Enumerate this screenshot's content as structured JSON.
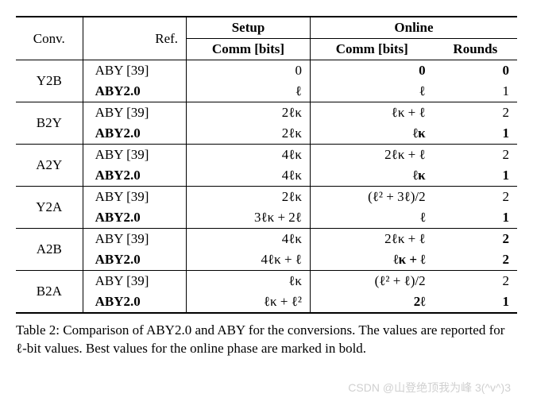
{
  "table": {
    "headers": {
      "conv": "Conv.",
      "ref": "Ref.",
      "setup": "Setup",
      "online": "Online",
      "comm_bits": "Comm [bits]",
      "rounds": "Rounds"
    },
    "groups": [
      {
        "conv": "Y2B",
        "rows": [
          {
            "ref": "ABY [39]",
            "ref_bold": false,
            "setup": "0",
            "online_comm": "0",
            "online_comm_bold": true,
            "rounds": "0",
            "rounds_bold": true
          },
          {
            "ref": "ABY2.0",
            "ref_bold": true,
            "setup": "ℓ",
            "online_comm": "ℓ",
            "online_comm_bold": false,
            "rounds": "1",
            "rounds_bold": false
          }
        ]
      },
      {
        "conv": "B2Y",
        "rows": [
          {
            "ref": "ABY [39]",
            "ref_bold": false,
            "setup": "2ℓκ",
            "online_comm": "ℓκ + ℓ",
            "online_comm_bold": false,
            "rounds": "2",
            "rounds_bold": false
          },
          {
            "ref": "ABY2.0",
            "ref_bold": true,
            "setup": "2ℓκ",
            "online_comm": "ℓκ",
            "online_comm_bold": true,
            "rounds": "1",
            "rounds_bold": true
          }
        ]
      },
      {
        "conv": "A2Y",
        "rows": [
          {
            "ref": "ABY [39]",
            "ref_bold": false,
            "setup": "4ℓκ",
            "online_comm": "2ℓκ + ℓ",
            "online_comm_bold": false,
            "rounds": "2",
            "rounds_bold": false
          },
          {
            "ref": "ABY2.0",
            "ref_bold": true,
            "setup": "4ℓκ",
            "online_comm": "ℓκ",
            "online_comm_bold": true,
            "rounds": "1",
            "rounds_bold": true
          }
        ]
      },
      {
        "conv": "Y2A",
        "rows": [
          {
            "ref": "ABY [39]",
            "ref_bold": false,
            "setup": "2ℓκ",
            "online_comm": "(ℓ² + 3ℓ)/2",
            "online_comm_bold": false,
            "rounds": "2",
            "rounds_bold": false
          },
          {
            "ref": "ABY2.0",
            "ref_bold": true,
            "setup": "3ℓκ + 2ℓ",
            "online_comm": "ℓ",
            "online_comm_bold": true,
            "rounds": "1",
            "rounds_bold": true
          }
        ]
      },
      {
        "conv": "A2B",
        "rows": [
          {
            "ref": "ABY [39]",
            "ref_bold": false,
            "setup": "4ℓκ",
            "online_comm": "2ℓκ + ℓ",
            "online_comm_bold": false,
            "rounds": "2",
            "rounds_bold": true
          },
          {
            "ref": "ABY2.0",
            "ref_bold": true,
            "setup": "4ℓκ + ℓ",
            "online_comm": "ℓκ + ℓ",
            "online_comm_bold": true,
            "rounds": "2",
            "rounds_bold": true
          }
        ]
      },
      {
        "conv": "B2A",
        "rows": [
          {
            "ref": "ABY [39]",
            "ref_bold": false,
            "setup": "ℓκ",
            "online_comm": "(ℓ² + ℓ)/2",
            "online_comm_bold": false,
            "rounds": "2",
            "rounds_bold": false
          },
          {
            "ref": "ABY2.0",
            "ref_bold": true,
            "setup": "ℓκ + ℓ²",
            "online_comm": "2ℓ",
            "online_comm_bold": true,
            "rounds": "1",
            "rounds_bold": true
          }
        ]
      }
    ]
  },
  "caption": "Table 2: Comparison of ABY2.0 and ABY for the conversions. The values are reported for ℓ-bit values. Best values for the online phase are marked in bold.",
  "watermark": "CSDN @山登绝顶我为峰 3(^v^)3"
}
